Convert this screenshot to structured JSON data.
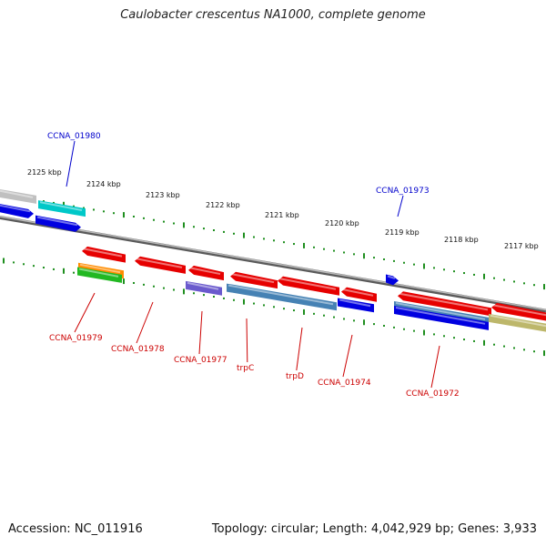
{
  "header": {
    "title": "Caulobacter crescentus NA1000, complete genome"
  },
  "footer": {
    "accession": "Accession: NC_011916",
    "summary": "Topology: circular; Length: 4,042,929 bp; Genes: 3,933"
  },
  "colors": {
    "forward_label": "#0000cc",
    "reverse_label": "#cc0000",
    "backbone": "#8a8a8a",
    "tick": "#1f8f1f",
    "tick_label": "#111111",
    "gene_red": "#e60000",
    "gene_blue": "#0000e0",
    "gene_cyan": "#00c8c8",
    "gene_gray": "#c0c0c0",
    "gene_purple": "#6a5acd",
    "gene_steel": "#4682b4",
    "gene_orange": "#ff8c00",
    "gene_green": "#22b822",
    "gene_khaki": "#bdb76b"
  },
  "scale": {
    "labels": [
      "2125 kbp",
      "2124 kbp",
      "2123 kbp",
      "2122 kbp",
      "2121 kbp",
      "2120 kbp",
      "2119 kbp",
      "2118 kbp",
      "2117 kbp"
    ]
  },
  "gene_labels": {
    "forward": [
      "CCNA_01980",
      "CCNA_01973"
    ],
    "reverse": [
      "CCNA_01979",
      "CCNA_01978",
      "CCNA_01977",
      "trpC",
      "trpD",
      "CCNA_01974",
      "CCNA_01972"
    ]
  }
}
